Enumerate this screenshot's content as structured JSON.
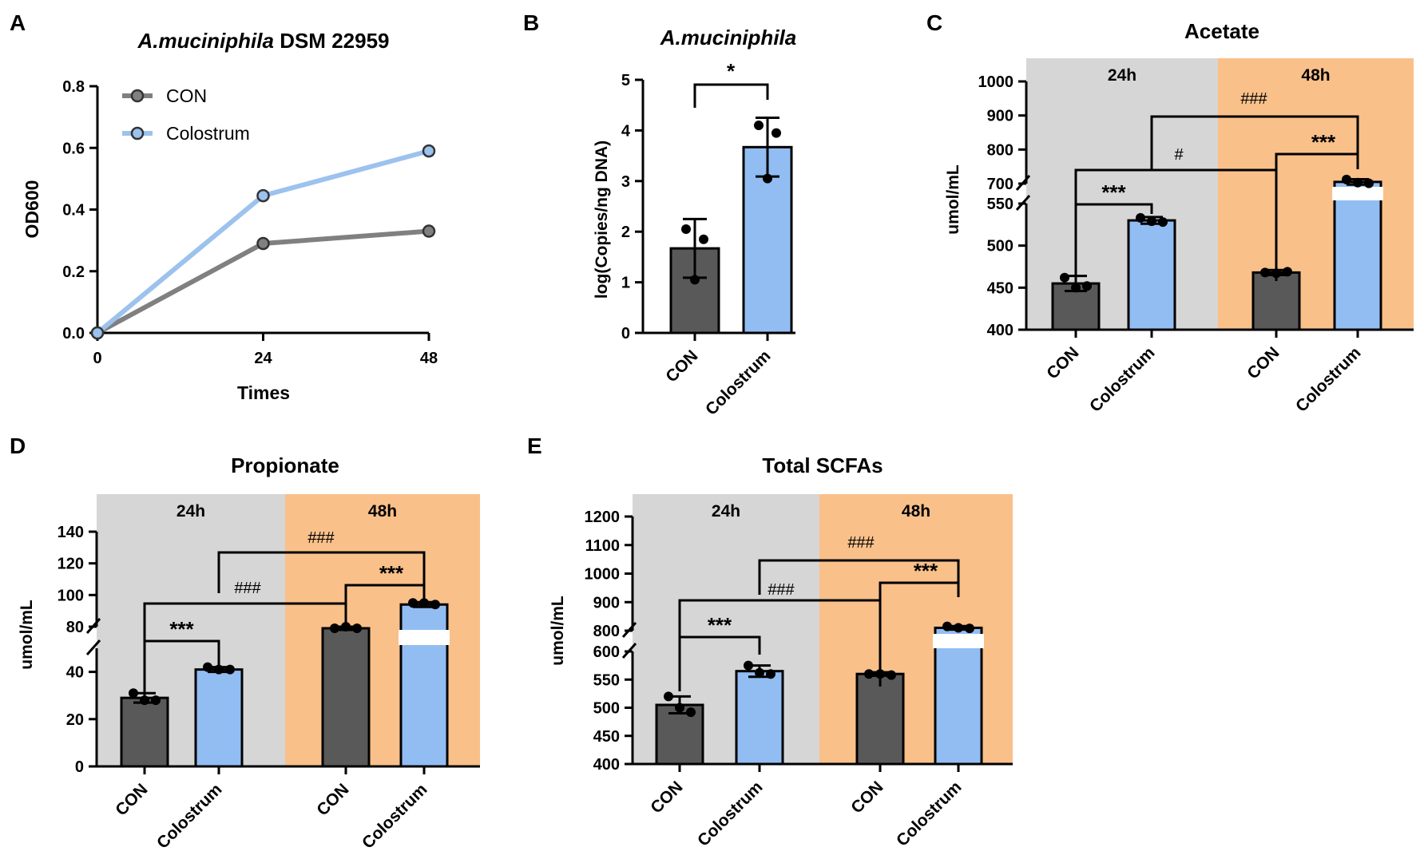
{
  "colors": {
    "con": "#595959",
    "colostrum": "#92BDF3",
    "con_line": "#808080",
    "colostrum_line": "#9CC2EE",
    "bg24": "#D6D6D6",
    "bg48": "#F9C08A"
  },
  "chart_data": [
    {
      "id": "A",
      "panel_label": "A",
      "type": "line",
      "title_italic": "A.muciniphila",
      "title_rest": " DSM 22959",
      "xlabel": "Times",
      "ylabel": "OD600",
      "x": [
        0,
        24,
        48
      ],
      "xlim": [
        0,
        48
      ],
      "ylim": [
        0,
        0.8
      ],
      "xticks": [
        "0",
        "24",
        "48"
      ],
      "yticks": [
        "0.0",
        "0.2",
        "0.4",
        "0.6",
        "0.8"
      ],
      "series": [
        {
          "name": "CON",
          "values": [
            0,
            0.29,
            0.33
          ]
        },
        {
          "name": "Colostrum",
          "values": [
            0,
            0.445,
            0.59
          ]
        }
      ],
      "legend": "top-left"
    },
    {
      "id": "B",
      "panel_label": "B",
      "type": "bar",
      "title": "A.muciniphila",
      "ylabel": "log(Copies/ng DNA)",
      "categories": [
        "CON",
        "Colostrum"
      ],
      "values": [
        1.67,
        3.67
      ],
      "error": [
        0.58,
        0.58
      ],
      "points": [
        [
          2.05,
          1.85,
          1.05
        ],
        [
          4.1,
          3.95,
          3.05
        ]
      ],
      "ylim": [
        0,
        5
      ],
      "yticks": [
        "0",
        "1",
        "2",
        "3",
        "4",
        "5"
      ],
      "significance": "*"
    },
    {
      "id": "C",
      "panel_label": "C",
      "type": "bar",
      "title": "Acetate",
      "ylabel": "umol/mL",
      "periods": [
        "24h",
        "48h"
      ],
      "categories": [
        "CON",
        "Colostrum",
        "CON",
        "Colostrum"
      ],
      "values": [
        455,
        530,
        468,
        705
      ],
      "error": [
        9,
        4,
        3,
        8
      ],
      "points": [
        [
          462,
          450,
          452
        ],
        [
          533,
          529,
          528
        ],
        [
          468,
          467,
          469
        ],
        [
          712,
          703,
          701
        ]
      ],
      "ylim": [
        400,
        1000
      ],
      "axis_break": [
        550,
        700
      ],
      "yticks": [
        "400",
        "450",
        "500",
        "550",
        "700",
        "800",
        "900",
        "1000"
      ],
      "significance": {
        "t24": "***",
        "t48": "***",
        "con": "#",
        "colostrum": "###"
      }
    },
    {
      "id": "D",
      "panel_label": "D",
      "type": "bar",
      "title": "Propionate",
      "ylabel": "umol/mL",
      "periods": [
        "24h",
        "48h"
      ],
      "categories": [
        "CON",
        "Colostrum",
        "CON",
        "Colostrum"
      ],
      "values": [
        29,
        41,
        79,
        94
      ],
      "error": [
        2,
        1,
        1,
        1.5
      ],
      "points": [
        [
          31,
          28,
          28
        ],
        [
          42,
          41,
          41
        ],
        [
          79,
          80,
          79
        ],
        [
          95,
          95,
          94
        ]
      ],
      "ylim": [
        0,
        140
      ],
      "axis_break": [
        50,
        80
      ],
      "yticks": [
        "0",
        "20",
        "40",
        "80",
        "100",
        "120",
        "140"
      ],
      "significance": {
        "t24": "***",
        "t48": "***",
        "con": "###",
        "colostrum": "###"
      }
    },
    {
      "id": "E",
      "panel_label": "E",
      "type": "bar",
      "title": "Total SCFAs",
      "ylabel": "umol/mL",
      "periods": [
        "24h",
        "48h"
      ],
      "categories": [
        "CON",
        "Colostrum",
        "CON",
        "Colostrum"
      ],
      "values": [
        505,
        565,
        560,
        810
      ],
      "error": [
        15,
        10,
        3,
        6
      ],
      "points": [
        [
          520,
          500,
          492
        ],
        [
          575,
          562,
          560
        ],
        [
          560,
          560,
          558
        ],
        [
          815,
          810,
          808
        ]
      ],
      "ylim": [
        400,
        1200
      ],
      "axis_break": [
        600,
        800
      ],
      "yticks": [
        "400",
        "450",
        "500",
        "550",
        "600",
        "800",
        "900",
        "1000",
        "1100",
        "1200"
      ],
      "significance": {
        "t24": "***",
        "t48": "***",
        "con": "###",
        "colostrum": "###"
      }
    }
  ]
}
